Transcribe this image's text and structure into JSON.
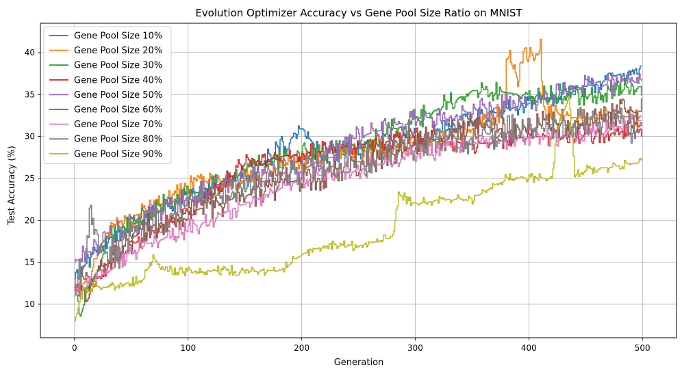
{
  "chart_data": {
    "type": "line",
    "title": "Evolution Optimizer Accuracy vs Gene Pool Size Ratio on MNIST",
    "xlabel": "Generation",
    "ylabel": "Test Accuracy (%)",
    "xlim": [
      -30,
      530
    ],
    "ylim": [
      6,
      43.5
    ],
    "xticks": [
      0,
      100,
      200,
      300,
      400,
      500
    ],
    "yticks": [
      10,
      15,
      20,
      25,
      30,
      35,
      40
    ],
    "grid": true,
    "legend_position": "top-left",
    "series": [
      {
        "name": "Gene Pool Size 10%",
        "color": "#1f77b4",
        "noise": 1.2,
        "points": [
          [
            0,
            13
          ],
          [
            10,
            15
          ],
          [
            30,
            18
          ],
          [
            60,
            20
          ],
          [
            100,
            23
          ],
          [
            150,
            25
          ],
          [
            200,
            31
          ],
          [
            215,
            28
          ],
          [
            250,
            28
          ],
          [
            300,
            30
          ],
          [
            310,
            30
          ],
          [
            350,
            32
          ],
          [
            400,
            34
          ],
          [
            450,
            36
          ],
          [
            499,
            38.5
          ]
        ]
      },
      {
        "name": "Gene Pool Size 20%",
        "color": "#ff7f0e",
        "noise": 1.3,
        "points": [
          [
            0,
            11
          ],
          [
            10,
            13
          ],
          [
            30,
            19
          ],
          [
            60,
            21
          ],
          [
            100,
            24
          ],
          [
            150,
            25
          ],
          [
            200,
            27
          ],
          [
            250,
            28
          ],
          [
            300,
            29
          ],
          [
            350,
            31
          ],
          [
            378,
            33
          ],
          [
            380,
            40.5
          ],
          [
            390,
            36
          ],
          [
            395,
            41
          ],
          [
            405,
            39
          ],
          [
            410,
            40.5
          ],
          [
            412,
            33
          ],
          [
            450,
            32
          ],
          [
            499,
            32.5
          ]
        ]
      },
      {
        "name": "Gene Pool Size 30%",
        "color": "#2ca02c",
        "noise": 1.3,
        "points": [
          [
            0,
            12
          ],
          [
            5,
            9
          ],
          [
            10,
            11
          ],
          [
            30,
            18
          ],
          [
            60,
            21
          ],
          [
            100,
            23
          ],
          [
            150,
            26
          ],
          [
            200,
            28
          ],
          [
            250,
            29
          ],
          [
            300,
            32
          ],
          [
            350,
            35.5
          ],
          [
            400,
            35
          ],
          [
            450,
            35
          ],
          [
            499,
            36
          ]
        ]
      },
      {
        "name": "Gene Pool Size 40%",
        "color": "#d62728",
        "noise": 1.1,
        "points": [
          [
            0,
            12
          ],
          [
            10,
            11
          ],
          [
            30,
            15
          ],
          [
            60,
            18
          ],
          [
            100,
            21
          ],
          [
            150,
            27
          ],
          [
            200,
            28
          ],
          [
            250,
            29
          ],
          [
            300,
            30
          ],
          [
            350,
            29
          ],
          [
            400,
            30
          ],
          [
            450,
            30
          ],
          [
            499,
            31
          ]
        ]
      },
      {
        "name": "Gene Pool Size 50%",
        "color": "#9467bd",
        "noise": 1.5,
        "points": [
          [
            0,
            15
          ],
          [
            10,
            16
          ],
          [
            30,
            18
          ],
          [
            60,
            20
          ],
          [
            100,
            23
          ],
          [
            150,
            25
          ],
          [
            200,
            26
          ],
          [
            250,
            30
          ],
          [
            300,
            32
          ],
          [
            350,
            33
          ],
          [
            400,
            34
          ],
          [
            450,
            36
          ],
          [
            499,
            36.5
          ]
        ]
      },
      {
        "name": "Gene Pool Size 60%",
        "color": "#8c564b",
        "noise": 1.8,
        "points": [
          [
            0,
            12
          ],
          [
            10,
            13
          ],
          [
            30,
            15
          ],
          [
            60,
            19
          ],
          [
            100,
            21
          ],
          [
            150,
            23
          ],
          [
            200,
            25
          ],
          [
            250,
            26
          ],
          [
            300,
            29
          ],
          [
            350,
            31
          ],
          [
            400,
            31
          ],
          [
            450,
            32
          ],
          [
            499,
            33
          ]
        ]
      },
      {
        "name": "Gene Pool Size 70%",
        "color": "#e377c2",
        "noise": 1.2,
        "points": [
          [
            0,
            12
          ],
          [
            10,
            12
          ],
          [
            30,
            14
          ],
          [
            60,
            17
          ],
          [
            100,
            19
          ],
          [
            150,
            22
          ],
          [
            200,
            25
          ],
          [
            250,
            26
          ],
          [
            300,
            28
          ],
          [
            350,
            29
          ],
          [
            400,
            30
          ],
          [
            450,
            30
          ],
          [
            499,
            32
          ]
        ]
      },
      {
        "name": "Gene Pool Size 80%",
        "color": "#7f7f7f",
        "noise": 2.0,
        "points": [
          [
            0,
            13
          ],
          [
            10,
            15
          ],
          [
            14,
            22
          ],
          [
            20,
            18
          ],
          [
            30,
            15
          ],
          [
            60,
            19
          ],
          [
            100,
            22
          ],
          [
            150,
            24
          ],
          [
            200,
            26
          ],
          [
            250,
            27
          ],
          [
            300,
            29
          ],
          [
            350,
            30
          ],
          [
            400,
            31
          ],
          [
            450,
            32
          ],
          [
            499,
            31
          ]
        ]
      },
      {
        "name": "Gene Pool Size 90%",
        "color": "#bcbd22",
        "noise": 0.6,
        "points": [
          [
            0,
            8
          ],
          [
            5,
            11
          ],
          [
            10,
            12
          ],
          [
            30,
            12
          ],
          [
            60,
            13
          ],
          [
            70,
            16
          ],
          [
            75,
            14
          ],
          [
            100,
            14
          ],
          [
            130,
            14
          ],
          [
            180,
            14
          ],
          [
            200,
            16
          ],
          [
            220,
            17
          ],
          [
            250,
            17
          ],
          [
            280,
            18
          ],
          [
            285,
            23
          ],
          [
            300,
            22
          ],
          [
            320,
            22.5
          ],
          [
            350,
            22.5
          ],
          [
            360,
            23.5
          ],
          [
            380,
            25
          ],
          [
            400,
            25
          ],
          [
            420,
            25
          ],
          [
            425,
            31
          ],
          [
            435,
            35
          ],
          [
            440,
            25.5
          ],
          [
            450,
            26
          ],
          [
            480,
            26.5
          ],
          [
            499,
            27
          ]
        ]
      }
    ]
  }
}
